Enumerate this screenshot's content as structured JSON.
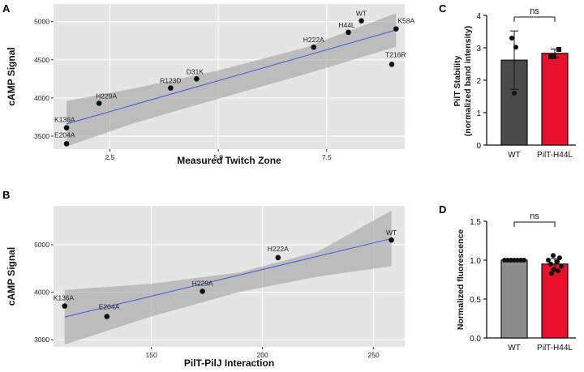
{
  "chart_data": [
    {
      "panel": "A",
      "type": "scatter",
      "xlabel": "Measured Twitch Zone",
      "ylabel": "cAMP Signal",
      "xlim": [
        1.2,
        9.3
      ],
      "ylim": [
        3330,
        5230
      ],
      "xticks": [
        "2.5",
        "5.0",
        "7.5"
      ],
      "xtick_values": [
        2.5,
        5.0,
        7.5
      ],
      "yticks": [
        "3500",
        "4000",
        "4500",
        "5000"
      ],
      "ytick_values": [
        3500,
        4000,
        4500,
        5000
      ],
      "points": [
        {
          "label": "WT",
          "x": 8.3,
          "y": 5010
        },
        {
          "label": "K58A",
          "x": 9.1,
          "y": 4905
        },
        {
          "label": "H44L",
          "x": 8.0,
          "y": 4860
        },
        {
          "label": "H222A",
          "x": 7.2,
          "y": 4665
        },
        {
          "label": "T216R",
          "x": 9.0,
          "y": 4440
        },
        {
          "label": "D31K",
          "x": 4.5,
          "y": 4250
        },
        {
          "label": "R123D",
          "x": 3.9,
          "y": 4130
        },
        {
          "label": "H229A",
          "x": 2.25,
          "y": 3930
        },
        {
          "label": "K136A",
          "x": 1.5,
          "y": 3610
        },
        {
          "label": "E204A",
          "x": 1.5,
          "y": 3400
        }
      ],
      "fit_line": {
        "x": [
          1.5,
          9.1
        ],
        "y": [
          3660,
          4890
        ]
      },
      "confidence_band": {
        "x": [
          1.5,
          3.0,
          5.0,
          7.0,
          9.1
        ],
        "upper": [
          3960,
          4120,
          4360,
          4660,
          5110
        ],
        "lower": [
          3365,
          3660,
          3990,
          4310,
          4670
        ]
      }
    },
    {
      "panel": "B",
      "type": "scatter",
      "xlabel": "PilT-PilJ Interaction",
      "ylabel": "cAMP Signal",
      "xlim": [
        106,
        264
      ],
      "ylim": [
        2850,
        5820
      ],
      "xticks": [
        "150",
        "200",
        "250"
      ],
      "xtick_values": [
        150,
        200,
        250
      ],
      "yticks": [
        "3000",
        "4000",
        "5000"
      ],
      "ytick_values": [
        3000,
        4000,
        5000
      ],
      "points": [
        {
          "label": "WT",
          "x": 258,
          "y": 5100
        },
        {
          "label": "H222A",
          "x": 207,
          "y": 4730
        },
        {
          "label": "H229A",
          "x": 173,
          "y": 4020
        },
        {
          "label": "K136A",
          "x": 111,
          "y": 3710
        },
        {
          "label": "E204A",
          "x": 130,
          "y": 3490
        }
      ],
      "fit_line": {
        "x": [
          111,
          258
        ],
        "y": [
          3480,
          5130
        ]
      },
      "confidence_band": {
        "x": [
          111,
          150,
          190,
          225,
          258
        ],
        "upper": [
          4050,
          4180,
          4420,
          4860,
          5720
        ],
        "lower": [
          2900,
          3490,
          4010,
          4330,
          4550
        ]
      }
    },
    {
      "panel": "C",
      "type": "bar",
      "ylabel_line1": "PilT Stability",
      "ylabel_line2": "(normalized band intensity)",
      "categories": [
        "WT",
        "PilT-H44L"
      ],
      "values": [
        2.62,
        2.83
      ],
      "errors": [
        0.9,
        0.13
      ],
      "colors": [
        "#4a4a4a",
        "#e8102a"
      ],
      "dots": [
        [
          3.3,
          3.02,
          1.6
        ],
        [
          2.95,
          2.73,
          2.73
        ]
      ],
      "ylim": [
        0,
        4
      ],
      "yticks": [
        "0",
        "1",
        "2",
        "3",
        "4"
      ],
      "ytick_values": [
        0,
        1,
        2,
        3,
        4
      ],
      "annotation": "ns"
    },
    {
      "panel": "D",
      "type": "bar",
      "ylabel": "Normalized fluorescence",
      "categories": [
        "WT",
        "PilT-H44L"
      ],
      "values": [
        1.0,
        0.95
      ],
      "errors": [
        0.0,
        0.07
      ],
      "colors": [
        "#8c8c8c",
        "#e8102a"
      ],
      "dots": [
        [
          1,
          1,
          1,
          1,
          1,
          1,
          1
        ],
        [
          1.06,
          1.03,
          1.0,
          0.98,
          0.95,
          0.92,
          0.88,
          0.86,
          0.83
        ]
      ],
      "ylim": [
        0,
        1.5
      ],
      "yticks": [
        "0.0",
        "0.5",
        "1.0",
        "1.5"
      ],
      "ytick_values": [
        0,
        0.5,
        1.0,
        1.5
      ],
      "annotation": "ns"
    }
  ]
}
